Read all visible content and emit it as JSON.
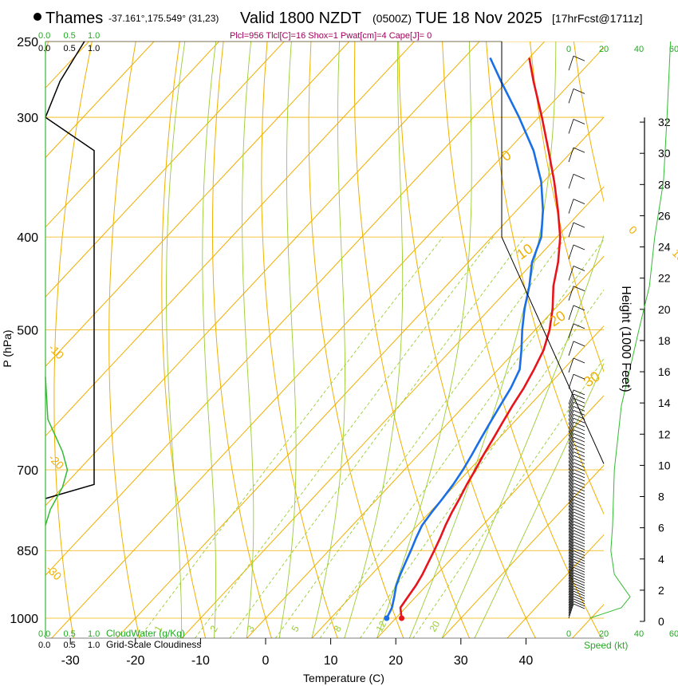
{
  "header": {
    "station": "Thames",
    "coords": "-37.161°,175.549° (31,23)",
    "valid_prefix": "Valid 1800 NZDT",
    "valid_utc": "(0500Z)",
    "valid_date": "TUE 18 Nov 2025",
    "forecast": "[17hrFcst@1711z]",
    "params": "Plcl=956 Tlcl[C]=16 Shox=1 Pwat[cm]=4 Cape[J]= 0"
  },
  "colors": {
    "temperature": "#e8141b",
    "dewpoint": "#1a6fe6",
    "isotherm": "#f0b000",
    "dry_adiabat": "#f0b000",
    "moist_adiabat": "#9acd32",
    "mixing_ratio": "#9acd32",
    "cloudwater": "#33bb33",
    "cloudiness": "#000000",
    "height_scale": "#000000",
    "wind_speed": "#33bb33"
  },
  "chart_data": {
    "type": "line",
    "subtype": "skew-T log-P sounding",
    "xlabel": "Temperature (C)",
    "ylabel": "P (hPa)",
    "right_label": "Height (1000 Feet)",
    "x_ticks": [
      -30,
      -20,
      -10,
      0,
      10,
      20,
      30,
      40
    ],
    "pressure_ticks": [
      250,
      300,
      400,
      500,
      700,
      850,
      1000
    ],
    "pressure_range": [
      250,
      1000
    ],
    "height_ticks": [
      0,
      2,
      4,
      6,
      8,
      10,
      12,
      14,
      16,
      18,
      20,
      22,
      24,
      26,
      28,
      30,
      32
    ],
    "series": [
      {
        "key": "temperature",
        "points": [
          [
            1000,
            20.9
          ],
          [
            975,
            19.2
          ],
          [
            950,
            18.8
          ],
          [
            925,
            18.4
          ],
          [
            900,
            17.8
          ],
          [
            875,
            17.0
          ],
          [
            850,
            16.2
          ],
          [
            825,
            15.3
          ],
          [
            800,
            14.3
          ],
          [
            775,
            13.4
          ],
          [
            750,
            12.6
          ],
          [
            725,
            11.7
          ],
          [
            700,
            10.9
          ],
          [
            675,
            10.0
          ],
          [
            650,
            9.2
          ],
          [
            625,
            8.3
          ],
          [
            600,
            7.4
          ],
          [
            575,
            6.6
          ],
          [
            550,
            5.5
          ],
          [
            525,
            4.2
          ],
          [
            500,
            2.2
          ],
          [
            475,
            -0.4
          ],
          [
            450,
            -3.5
          ],
          [
            425,
            -6.2
          ],
          [
            400,
            -9.5
          ],
          [
            375,
            -13.7
          ],
          [
            350,
            -18.4
          ],
          [
            325,
            -23.7
          ],
          [
            300,
            -29.5
          ],
          [
            275,
            -36.0
          ],
          [
            260,
            -40.0
          ]
        ]
      },
      {
        "key": "dewpoint",
        "points": [
          [
            1000,
            18.6
          ],
          [
            975,
            17.9
          ],
          [
            950,
            16.7
          ],
          [
            925,
            15.4
          ],
          [
            900,
            14.4
          ],
          [
            875,
            13.5
          ],
          [
            850,
            12.6
          ],
          [
            825,
            11.6
          ],
          [
            800,
            10.7
          ],
          [
            775,
            10.3
          ],
          [
            750,
            10.0
          ],
          [
            725,
            9.6
          ],
          [
            700,
            9.0
          ],
          [
            675,
            8.2
          ],
          [
            650,
            7.3
          ],
          [
            625,
            6.4
          ],
          [
            600,
            5.5
          ],
          [
            575,
            4.6
          ],
          [
            550,
            3.3
          ],
          [
            525,
            0.8
          ],
          [
            500,
            -2.0
          ],
          [
            475,
            -4.7
          ],
          [
            450,
            -7.2
          ],
          [
            425,
            -10.2
          ],
          [
            400,
            -12.4
          ],
          [
            375,
            -16.0
          ],
          [
            350,
            -20.4
          ],
          [
            325,
            -26.0
          ],
          [
            300,
            -33.0
          ],
          [
            275,
            -41.0
          ],
          [
            260,
            -46.0
          ]
        ]
      }
    ],
    "isotherm_labels": [
      "-20",
      "-10",
      "0",
      "10",
      "20",
      "30"
    ],
    "dry_adiabat_labels": [
      "0",
      "10",
      "20",
      "30"
    ],
    "mixing_ratio_labels": [
      "1",
      "2",
      "3",
      "5",
      "8",
      "12",
      "20"
    ],
    "left_panel": {
      "top_scale": [
        "0.0",
        "0.5",
        "1.0"
      ],
      "bottom_scale": [
        "0.0",
        "0.5",
        "1.0"
      ],
      "cloudwater_label": "CloudWater (g/Kg)",
      "cloudiness_label": "Grid-Scale Cloudiness",
      "cloudiness_profile": [
        [
          250,
          0.8
        ],
        [
          275,
          0.3
        ],
        [
          300,
          0.0
        ],
        [
          325,
          1.0
        ],
        [
          700,
          1.0
        ],
        [
          725,
          1.0
        ],
        [
          750,
          0.0
        ]
      ],
      "cloudwater_profile": [
        [
          560,
          0.0
        ],
        [
          620,
          0.05
        ],
        [
          670,
          0.35
        ],
        [
          700,
          0.45
        ],
        [
          730,
          0.35
        ],
        [
          770,
          0.1
        ],
        [
          800,
          0.0
        ]
      ]
    },
    "wind_panel": {
      "speed_label": "Speed (kt)",
      "speed_ticks": [
        "0",
        "20",
        "40",
        "60"
      ],
      "speed_range": [
        0,
        60
      ]
    }
  }
}
